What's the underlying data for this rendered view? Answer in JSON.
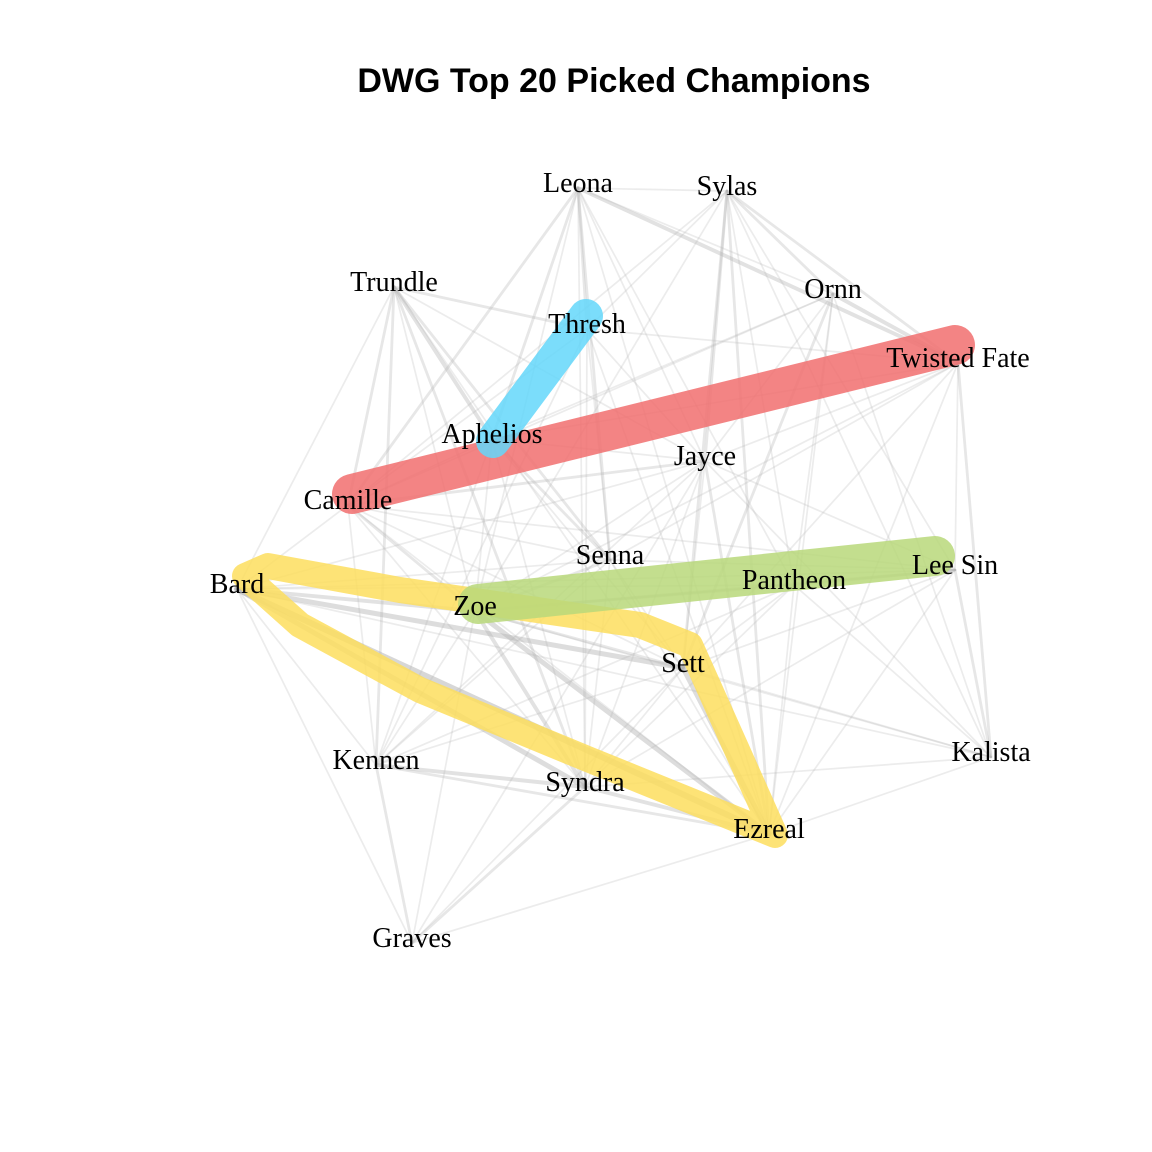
{
  "title": "DWG Top 20 Picked Champions",
  "colors": {
    "edge": "#b4b4b4",
    "group_red": "#f16e6e",
    "group_blue": "#64d7fa",
    "group_yellow": "#fdde5e",
    "group_green": "#b9d87a"
  },
  "nodes": [
    {
      "id": "leona",
      "label": "Leona"
    },
    {
      "id": "sylas",
      "label": "Sylas"
    },
    {
      "id": "trundle",
      "label": "Trundle"
    },
    {
      "id": "ornn",
      "label": "Ornn"
    },
    {
      "id": "thresh",
      "label": "Thresh"
    },
    {
      "id": "twisted_fate",
      "label": "Twisted Fate"
    },
    {
      "id": "aphelios",
      "label": "Aphelios"
    },
    {
      "id": "jayce",
      "label": "Jayce"
    },
    {
      "id": "camille",
      "label": "Camille"
    },
    {
      "id": "senna",
      "label": "Senna"
    },
    {
      "id": "lee_sin",
      "label": "Lee Sin"
    },
    {
      "id": "bard",
      "label": "Bard"
    },
    {
      "id": "pantheon",
      "label": "Pantheon"
    },
    {
      "id": "zoe",
      "label": "Zoe"
    },
    {
      "id": "sett",
      "label": "Sett"
    },
    {
      "id": "kennen",
      "label": "Kennen"
    },
    {
      "id": "kalista",
      "label": "Kalista"
    },
    {
      "id": "syndra",
      "label": "Syndra"
    },
    {
      "id": "ezreal",
      "label": "Ezreal"
    },
    {
      "id": "graves",
      "label": "Graves"
    }
  ],
  "groups": [
    {
      "color": "group_red",
      "members": [
        "camille",
        "aphelios",
        "twisted_fate"
      ]
    },
    {
      "color": "group_blue",
      "members": [
        "thresh",
        "aphelios"
      ]
    },
    {
      "color": "group_yellow",
      "members": [
        "bard",
        "zoe",
        "sett",
        "syndra",
        "ezreal"
      ]
    },
    {
      "color": "group_green",
      "members": [
        "zoe",
        "senna",
        "pantheon",
        "lee_sin"
      ]
    }
  ],
  "edges": [
    [
      "bard",
      "ezreal",
      5
    ],
    [
      "bard",
      "syndra",
      4
    ],
    [
      "bard",
      "sett",
      4
    ],
    [
      "bard",
      "zoe",
      3
    ],
    [
      "zoe",
      "ezreal",
      4
    ],
    [
      "zoe",
      "syndra",
      3
    ],
    [
      "sett",
      "ezreal",
      4
    ],
    [
      "syndra",
      "ezreal",
      3
    ],
    [
      "kennen",
      "syndra",
      3
    ],
    [
      "kennen",
      "ezreal",
      2
    ],
    [
      "kennen",
      "graves",
      2
    ],
    [
      "graves",
      "syndra",
      2
    ],
    [
      "graves",
      "ezreal",
      1
    ],
    [
      "graves",
      "zoe",
      1
    ],
    [
      "graves",
      "sett",
      1
    ],
    [
      "graves",
      "bard",
      1
    ],
    [
      "trundle",
      "aphelios",
      3
    ],
    [
      "trundle",
      "senna",
      2
    ],
    [
      "trundle",
      "kennen",
      2
    ],
    [
      "trundle",
      "thresh",
      2
    ],
    [
      "trundle",
      "camille",
      2
    ],
    [
      "trundle",
      "syndra",
      2
    ],
    [
      "trundle",
      "zoe",
      1
    ],
    [
      "trundle",
      "jayce",
      1
    ],
    [
      "trundle",
      "ezreal",
      1
    ],
    [
      "trundle",
      "bard",
      1
    ],
    [
      "leona",
      "aphelios",
      2
    ],
    [
      "leona",
      "thresh",
      2
    ],
    [
      "leona",
      "senna",
      2
    ],
    [
      "leona",
      "camille",
      2
    ],
    [
      "leona",
      "ornn",
      1
    ],
    [
      "leona",
      "sylas",
      1
    ],
    [
      "leona",
      "twisted_fate",
      3
    ],
    [
      "leona",
      "jayce",
      1
    ],
    [
      "leona",
      "ezreal",
      1
    ],
    [
      "leona",
      "zoe",
      1
    ],
    [
      "leona",
      "pantheon",
      1
    ],
    [
      "leona",
      "syndra",
      1
    ],
    [
      "sylas",
      "ornn",
      2
    ],
    [
      "sylas",
      "twisted_fate",
      2
    ],
    [
      "sylas",
      "jayce",
      2
    ],
    [
      "sylas",
      "sett",
      2
    ],
    [
      "sylas",
      "ezreal",
      2
    ],
    [
      "sylas",
      "camille",
      1
    ],
    [
      "sylas",
      "thresh",
      1
    ],
    [
      "sylas",
      "kalista",
      1
    ],
    [
      "sylas",
      "pantheon",
      1
    ],
    [
      "sylas",
      "zoe",
      1
    ],
    [
      "sylas",
      "lee_sin",
      1
    ],
    [
      "ornn",
      "twisted_fate",
      3
    ],
    [
      "ornn",
      "sett",
      2
    ],
    [
      "ornn",
      "kalista",
      1
    ],
    [
      "ornn",
      "jayce",
      1
    ],
    [
      "ornn",
      "ezreal",
      1
    ],
    [
      "ornn",
      "pantheon",
      1
    ],
    [
      "ornn",
      "aphelios",
      1
    ],
    [
      "ornn",
      "camille",
      1
    ],
    [
      "thresh",
      "syndra",
      1
    ],
    [
      "thresh",
      "senna",
      1
    ],
    [
      "thresh",
      "camille",
      1
    ],
    [
      "thresh",
      "ezreal",
      1
    ],
    [
      "thresh",
      "twisted_fate",
      1
    ],
    [
      "thresh",
      "jayce",
      1
    ],
    [
      "thresh",
      "kennen",
      1
    ],
    [
      "twisted_fate",
      "kalista",
      2
    ],
    [
      "twisted_fate",
      "lee_sin",
      1
    ],
    [
      "twisted_fate",
      "jayce",
      1
    ],
    [
      "twisted_fate",
      "sett",
      1
    ],
    [
      "twisted_fate",
      "ezreal",
      1
    ],
    [
      "twisted_fate",
      "senna",
      1
    ],
    [
      "twisted_fate",
      "zoe",
      1
    ],
    [
      "twisted_fate",
      "aphelios",
      1
    ],
    [
      "aphelios",
      "camille",
      1
    ],
    [
      "aphelios",
      "senna",
      2
    ],
    [
      "aphelios",
      "zoe",
      1
    ],
    [
      "aphelios",
      "kennen",
      1
    ],
    [
      "aphelios",
      "syndra",
      1
    ],
    [
      "aphelios",
      "sett",
      1
    ],
    [
      "aphelios",
      "jayce",
      1
    ],
    [
      "jayce",
      "ezreal",
      2
    ],
    [
      "jayce",
      "camille",
      2
    ],
    [
      "jayce",
      "lee_sin",
      1
    ],
    [
      "jayce",
      "sett",
      1
    ],
    [
      "jayce",
      "kalista",
      1
    ],
    [
      "jayce",
      "bard",
      1
    ],
    [
      "jayce",
      "zoe",
      1
    ],
    [
      "jayce",
      "syndra",
      1
    ],
    [
      "jayce",
      "graves",
      1
    ],
    [
      "jayce",
      "kennen",
      1
    ],
    [
      "camille",
      "zoe",
      2
    ],
    [
      "camille",
      "senna",
      1
    ],
    [
      "camille",
      "bard",
      1
    ],
    [
      "camille",
      "kennen",
      1
    ],
    [
      "camille",
      "syndra",
      1
    ],
    [
      "camille",
      "lee_sin",
      1
    ],
    [
      "camille",
      "sett",
      1
    ],
    [
      "camille",
      "ezreal",
      1
    ],
    [
      "senna",
      "zoe",
      2
    ],
    [
      "senna",
      "sett",
      1
    ],
    [
      "senna",
      "ezreal",
      1
    ],
    [
      "senna",
      "lee_sin",
      1
    ],
    [
      "senna",
      "bard",
      1
    ],
    [
      "senna",
      "syndra",
      1
    ],
    [
      "senna",
      "kennen",
      1
    ],
    [
      "lee_sin",
      "pantheon",
      2
    ],
    [
      "lee_sin",
      "zoe",
      2
    ],
    [
      "lee_sin",
      "kalista",
      2
    ],
    [
      "lee_sin",
      "bard",
      1
    ],
    [
      "lee_sin",
      "sett",
      1
    ],
    [
      "lee_sin",
      "ezreal",
      1
    ],
    [
      "lee_sin",
      "syndra",
      1
    ],
    [
      "pantheon",
      "zoe",
      2
    ],
    [
      "pantheon",
      "sett",
      1
    ],
    [
      "pantheon",
      "bard",
      1
    ],
    [
      "pantheon",
      "kalista",
      1
    ],
    [
      "pantheon",
      "ezreal",
      1
    ],
    [
      "pantheon",
      "syndra",
      1
    ],
    [
      "pantheon",
      "kennen",
      1
    ],
    [
      "kalista",
      "sett",
      1
    ],
    [
      "kalista",
      "ezreal",
      1
    ],
    [
      "kalista",
      "bard",
      1
    ],
    [
      "kalista",
      "syndra",
      1
    ],
    [
      "kalista",
      "zoe",
      1
    ],
    [
      "kennen",
      "bard",
      1
    ],
    [
      "kennen",
      "zoe",
      1
    ],
    [
      "kennen",
      "sett",
      1
    ],
    [
      "sett",
      "syndra",
      1
    ],
    [
      "sett",
      "zoe",
      2
    ]
  ]
}
